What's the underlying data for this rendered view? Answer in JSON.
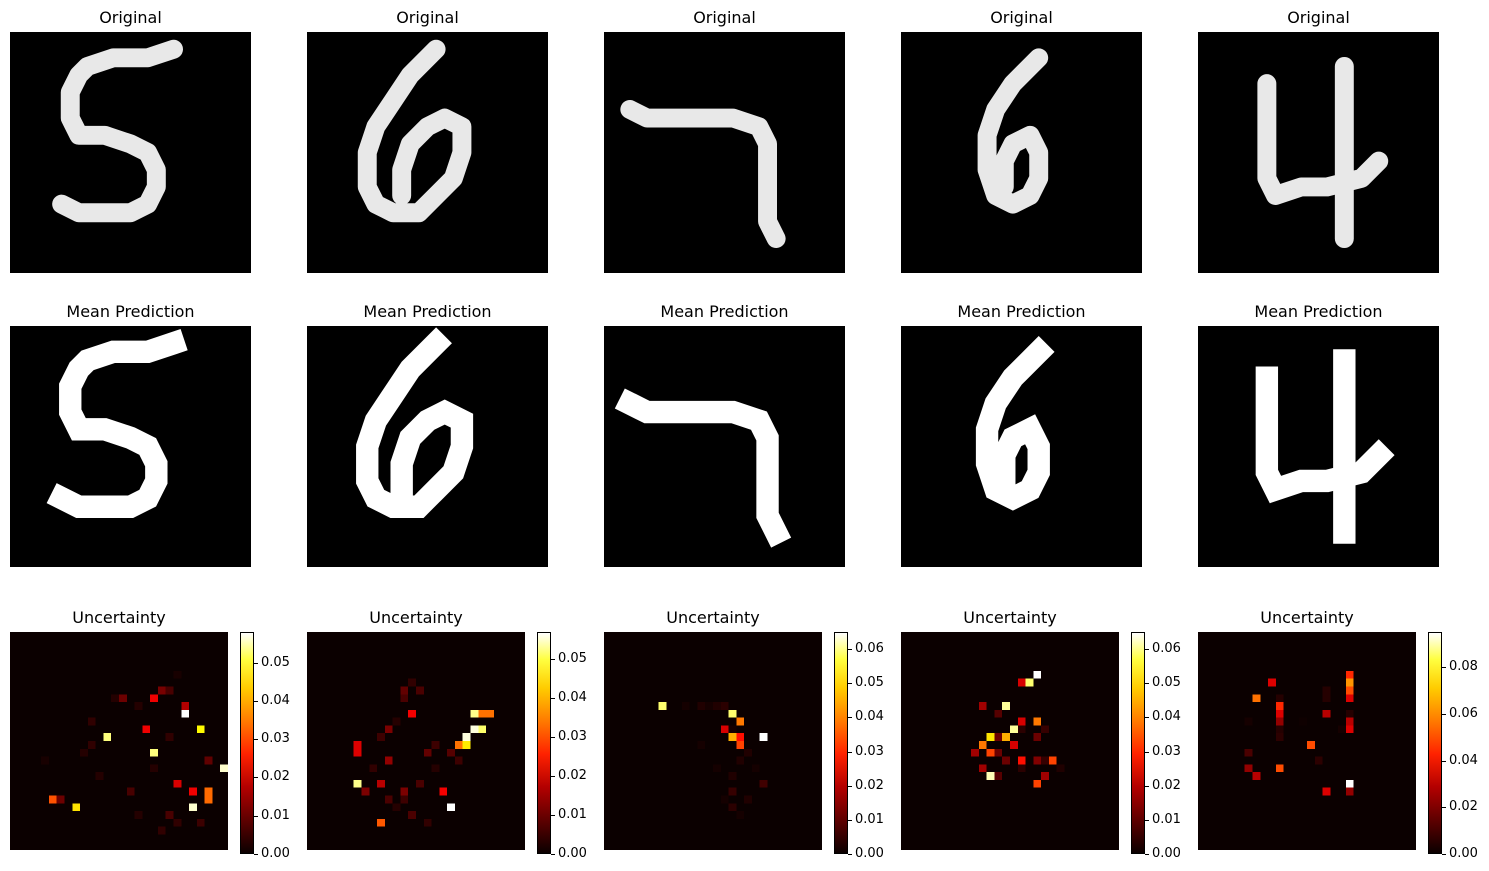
{
  "row_titles": [
    "Original",
    "Mean Prediction",
    "Uncertainty"
  ],
  "chart_data": [
    {
      "type": "heatmap",
      "digit": "5",
      "title_original": "Original",
      "title_mean": "Mean Prediction",
      "title_uncertainty": "Uncertainty",
      "colormap": "hot",
      "colorbar_range": [
        0.0,
        0.058
      ],
      "colorbar_ticks": [
        "0.00",
        "0.01",
        "0.02",
        "0.03",
        "0.04",
        "0.05"
      ],
      "colorbar_tick_values": [
        0.0,
        0.01,
        0.02,
        0.03,
        0.04,
        0.05
      ],
      "uncertainty_points": [
        [
          4,
          16,
          0.002
        ],
        [
          5,
          21,
          0.028
        ],
        [
          6,
          21,
          0.009
        ],
        [
          8,
          22,
          0.04
        ],
        [
          9,
          15,
          0.003
        ],
        [
          10,
          14,
          0.004
        ],
        [
          11,
          18,
          0.003
        ],
        [
          13,
          8,
          0.003
        ],
        [
          10,
          11,
          0.004
        ],
        [
          12,
          13,
          0.05
        ],
        [
          14,
          8,
          0.009
        ],
        [
          16,
          9,
          0.003
        ],
        [
          15,
          20,
          0.006
        ],
        [
          16,
          23,
          0.003
        ],
        [
          18,
          15,
          0.05
        ],
        [
          20,
          13,
          0.004
        ],
        [
          20,
          7,
          0.006
        ],
        [
          21,
          5,
          0.002
        ],
        [
          22,
          9,
          0.015
        ],
        [
          21,
          19,
          0.018
        ],
        [
          25,
          21,
          0.03
        ],
        [
          25,
          20,
          0.03
        ],
        [
          27,
          17,
          0.055
        ],
        [
          24,
          12,
          0.042
        ],
        [
          23,
          20,
          0.02
        ],
        [
          23,
          22,
          0.055
        ],
        [
          24,
          24,
          0.005
        ],
        [
          18,
          17,
          0.003
        ],
        [
          19,
          7,
          0.01
        ],
        [
          17,
          12,
          0.02
        ],
        [
          20,
          23,
          0.006
        ],
        [
          18,
          8,
          0.02
        ],
        [
          19,
          25,
          0.004
        ],
        [
          21,
          24,
          0.004
        ],
        [
          25,
          16,
          0.008
        ],
        [
          28,
          22,
          0.03
        ],
        [
          29,
          14,
          0.006
        ],
        [
          22,
          10,
          0.058
        ]
      ]
    },
    {
      "type": "heatmap",
      "digit": "6",
      "title_original": "Original",
      "title_mean": "Mean Prediction",
      "title_uncertainty": "Uncertainty",
      "colormap": "hot",
      "colorbar_range": [
        0.0,
        0.057
      ],
      "colorbar_ticks": [
        "0.00",
        "0.01",
        "0.02",
        "0.03",
        "0.04",
        "0.05"
      ],
      "colorbar_tick_values": [
        0.0,
        0.01,
        0.02,
        0.03,
        0.04,
        0.05
      ],
      "uncertainty_points": [
        [
          12,
          7,
          0.008
        ],
        [
          13,
          6,
          0.004
        ],
        [
          14,
          7,
          0.006
        ],
        [
          13,
          10,
          0.02
        ],
        [
          12,
          8,
          0.006
        ],
        [
          11,
          11,
          0.003
        ],
        [
          10,
          12,
          0.01
        ],
        [
          9,
          13,
          0.005
        ],
        [
          6,
          14,
          0.018
        ],
        [
          6,
          15,
          0.018
        ],
        [
          6,
          19,
          0.05
        ],
        [
          7,
          20,
          0.01
        ],
        [
          9,
          19,
          0.015
        ],
        [
          10,
          16,
          0.012
        ],
        [
          10,
          21,
          0.006
        ],
        [
          12,
          21,
          0.005
        ],
        [
          13,
          23,
          0.006
        ],
        [
          11,
          22,
          0.003
        ],
        [
          12,
          20,
          0.01
        ],
        [
          14,
          19,
          0.006
        ],
        [
          15,
          15,
          0.008
        ],
        [
          16,
          14,
          0.005
        ],
        [
          17,
          20,
          0.02
        ],
        [
          18,
          15,
          0.007
        ],
        [
          19,
          14,
          0.03
        ],
        [
          20,
          13,
          0.055
        ],
        [
          21,
          12,
          0.055
        ],
        [
          22,
          12,
          0.048
        ],
        [
          21,
          10,
          0.05
        ],
        [
          22,
          10,
          0.03
        ],
        [
          23,
          10,
          0.03
        ],
        [
          20,
          14,
          0.04
        ],
        [
          19,
          16,
          0.005
        ],
        [
          18,
          22,
          0.057
        ],
        [
          9,
          24,
          0.028
        ],
        [
          8,
          17,
          0.004
        ],
        [
          16,
          17,
          0.003
        ],
        [
          15,
          24,
          0.004
        ]
      ]
    },
    {
      "type": "heatmap",
      "digit": "7",
      "title_original": "Original",
      "title_mean": "Mean Prediction",
      "title_uncertainty": "Uncertainty",
      "colormap": "hot",
      "colorbar_range": [
        0.0,
        0.065
      ],
      "colorbar_ticks": [
        "0.00",
        "0.01",
        "0.02",
        "0.03",
        "0.04",
        "0.05",
        "0.06"
      ],
      "colorbar_tick_values": [
        0.0,
        0.01,
        0.02,
        0.03,
        0.04,
        0.05,
        0.06
      ],
      "uncertainty_points": [
        [
          7,
          9,
          0.055
        ],
        [
          10,
          9,
          0.002
        ],
        [
          12,
          9,
          0.003
        ],
        [
          13,
          9,
          0.002
        ],
        [
          14,
          9,
          0.003
        ],
        [
          15,
          9,
          0.004
        ],
        [
          16,
          10,
          0.055
        ],
        [
          17,
          11,
          0.035
        ],
        [
          16,
          12,
          0.002
        ],
        [
          15,
          12,
          0.02
        ],
        [
          16,
          13,
          0.04
        ],
        [
          17,
          13,
          0.025
        ],
        [
          17,
          14,
          0.03
        ],
        [
          20,
          13,
          0.065
        ],
        [
          18,
          15,
          0.003
        ],
        [
          17,
          16,
          0.003
        ],
        [
          16,
          18,
          0.003
        ],
        [
          20,
          19,
          0.006
        ],
        [
          16,
          20,
          0.005
        ],
        [
          16,
          22,
          0.004
        ],
        [
          14,
          17,
          0.002
        ],
        [
          19,
          17,
          0.002
        ],
        [
          17,
          23,
          0.002
        ],
        [
          15,
          21,
          0.002
        ],
        [
          18,
          21,
          0.003
        ],
        [
          12,
          14,
          0.002
        ]
      ]
    },
    {
      "type": "heatmap",
      "digit": "6",
      "title_original": "Original",
      "title_mean": "Mean Prediction",
      "title_uncertainty": "Uncertainty",
      "colormap": "hot",
      "colorbar_range": [
        0.0,
        0.065
      ],
      "colorbar_ticks": [
        "0.00",
        "0.01",
        "0.02",
        "0.03",
        "0.04",
        "0.05",
        "0.06"
      ],
      "colorbar_tick_values": [
        0.0,
        0.01,
        0.02,
        0.03,
        0.04,
        0.05,
        0.06
      ],
      "uncertainty_points": [
        [
          17,
          5,
          0.065
        ],
        [
          16,
          6,
          0.055
        ],
        [
          15,
          6,
          0.02
        ],
        [
          13,
          9,
          0.058
        ],
        [
          10,
          9,
          0.015
        ],
        [
          12,
          10,
          0.008
        ],
        [
          15,
          11,
          0.02
        ],
        [
          17,
          11,
          0.035
        ],
        [
          14,
          12,
          0.058
        ],
        [
          15,
          12,
          0.004
        ],
        [
          12,
          13,
          0.01
        ],
        [
          11,
          13,
          0.045
        ],
        [
          10,
          14,
          0.035
        ],
        [
          13,
          13,
          0.04
        ],
        [
          17,
          13,
          0.01
        ],
        [
          18,
          12,
          0.005
        ],
        [
          9,
          15,
          0.015
        ],
        [
          11,
          15,
          0.03
        ],
        [
          12,
          15,
          0.01
        ],
        [
          15,
          16,
          0.025
        ],
        [
          17,
          16,
          0.012
        ],
        [
          19,
          16,
          0.03
        ],
        [
          14,
          14,
          0.02
        ],
        [
          10,
          17,
          0.015
        ],
        [
          11,
          18,
          0.06
        ],
        [
          12,
          18,
          0.008
        ],
        [
          18,
          18,
          0.015
        ],
        [
          17,
          19,
          0.03
        ],
        [
          15,
          17,
          0.004
        ],
        [
          20,
          17,
          0.003
        ],
        [
          13,
          16,
          0.01
        ],
        [
          18,
          16,
          0.005
        ]
      ]
    },
    {
      "type": "heatmap",
      "digit": "4",
      "title_original": "Original",
      "title_mean": "Mean Prediction",
      "title_uncertainty": "Uncertainty",
      "colormap": "hot",
      "colorbar_range": [
        0.0,
        0.095
      ],
      "colorbar_ticks": [
        "0.00",
        "0.02",
        "0.04",
        "0.06",
        "0.08"
      ],
      "colorbar_tick_values": [
        0.0,
        0.02,
        0.04,
        0.06,
        0.08
      ],
      "uncertainty_points": [
        [
          9,
          6,
          0.03
        ],
        [
          7,
          8,
          0.05
        ],
        [
          10,
          8,
          0.005
        ],
        [
          10,
          9,
          0.04
        ],
        [
          10,
          10,
          0.03
        ],
        [
          10,
          11,
          0.02
        ],
        [
          10,
          12,
          0.005
        ],
        [
          16,
          7,
          0.005
        ],
        [
          16,
          8,
          0.005
        ],
        [
          16,
          10,
          0.025
        ],
        [
          19,
          5,
          0.04
        ],
        [
          19,
          6,
          0.055
        ],
        [
          19,
          7,
          0.045
        ],
        [
          19,
          8,
          0.03
        ],
        [
          19,
          10,
          0.005
        ],
        [
          19,
          11,
          0.025
        ],
        [
          19,
          12,
          0.03
        ],
        [
          14,
          14,
          0.045
        ],
        [
          6,
          15,
          0.01
        ],
        [
          6,
          17,
          0.02
        ],
        [
          7,
          18,
          0.025
        ],
        [
          10,
          17,
          0.045
        ],
        [
          15,
          16,
          0.006
        ],
        [
          16,
          20,
          0.03
        ],
        [
          19,
          19,
          0.095
        ],
        [
          19,
          20,
          0.02
        ],
        [
          18,
          12,
          0.003
        ],
        [
          10,
          13,
          0.006
        ],
        [
          6,
          11,
          0.003
        ],
        [
          13,
          11,
          0.002
        ]
      ]
    }
  ]
}
